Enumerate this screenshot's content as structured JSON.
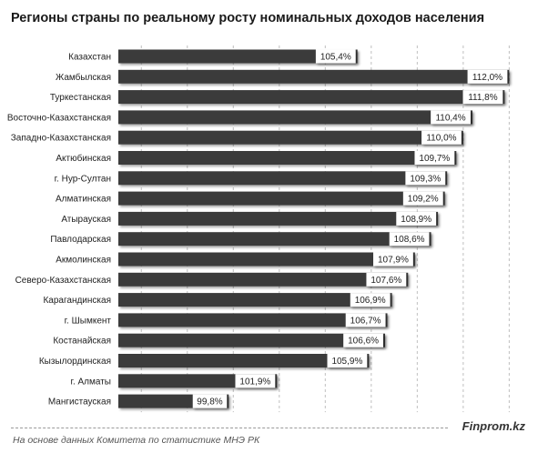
{
  "title": "Регионы страны по реальному росту номинальных доходов населения",
  "brand": "Finprom.kz",
  "source": "На основе данных Комитета по статистике МНЭ РК",
  "colors": {
    "bar": "#3a3a3a",
    "label_box": "#ffffff",
    "grid": "#bfbfbf"
  },
  "chart_data": {
    "type": "bar",
    "orientation": "horizontal",
    "title": "Регионы страны по реальному росту номинальных доходов населения",
    "xlabel": "",
    "ylabel": "",
    "xlim": [
      95,
      112.5
    ],
    "grid": true,
    "categories": [
      "Казахстан",
      "Жамбылская",
      "Туркестанская",
      "Восточно-Казахстанская",
      "Западно-Казахстанская",
      "Актюбинская",
      "г. Нур-Султан",
      "Алматинская",
      "Атырауская",
      "Павлодарская",
      "Акмолинская",
      "Северо-Казахстанская",
      "Карагандинская",
      "г. Шымкент",
      "Костанайская",
      "Кызылординская",
      "г. Алматы",
      "Мангистауская"
    ],
    "values": [
      105.4,
      112.0,
      111.8,
      110.4,
      110.0,
      109.7,
      109.3,
      109.2,
      108.9,
      108.6,
      107.9,
      107.6,
      106.9,
      106.7,
      106.6,
      105.9,
      101.9,
      99.8
    ],
    "value_labels": [
      "105,4%",
      "112,0%",
      "111,8%",
      "110,4%",
      "110,0%",
      "109,7%",
      "109,3%",
      "109,2%",
      "108,9%",
      "108,6%",
      "107,9%",
      "107,6%",
      "106,9%",
      "106,7%",
      "106,6%",
      "105,9%",
      "101,9%",
      "99,8%"
    ]
  }
}
